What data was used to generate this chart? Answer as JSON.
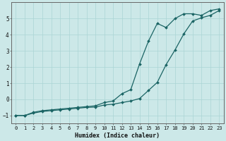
{
  "xlabel": "Humidex (Indice chaleur)",
  "bg_color": "#cce8e8",
  "line_color": "#1a6464",
  "grid_color": "#aad4d4",
  "xlim": [
    -0.5,
    23.5
  ],
  "ylim": [
    -1.5,
    6.0
  ],
  "xticks": [
    0,
    1,
    2,
    3,
    4,
    5,
    6,
    7,
    8,
    9,
    10,
    11,
    12,
    13,
    14,
    15,
    16,
    17,
    18,
    19,
    20,
    21,
    22,
    23
  ],
  "yticks": [
    -1,
    0,
    1,
    2,
    3,
    4,
    5
  ],
  "line1_x": [
    0,
    1,
    2,
    3,
    4,
    5,
    6,
    7,
    8,
    9,
    10,
    11,
    12,
    13,
    14,
    15,
    16,
    17,
    18,
    19,
    20,
    21,
    22,
    23
  ],
  "line1_y": [
    -1.0,
    -1.0,
    -0.85,
    -0.75,
    -0.7,
    -0.65,
    -0.6,
    -0.55,
    -0.5,
    -0.48,
    -0.35,
    -0.3,
    -0.2,
    -0.1,
    0.05,
    0.55,
    1.05,
    2.15,
    3.05,
    4.05,
    4.85,
    5.05,
    5.2,
    5.5
  ],
  "line2_x": [
    0,
    1,
    2,
    3,
    4,
    5,
    6,
    7,
    8,
    9,
    10,
    11,
    12,
    13,
    14,
    15,
    16,
    17,
    18,
    19,
    20,
    21,
    22,
    23
  ],
  "line2_y": [
    -1.0,
    -1.0,
    -0.8,
    -0.7,
    -0.65,
    -0.6,
    -0.55,
    -0.5,
    -0.45,
    -0.4,
    -0.2,
    -0.1,
    0.35,
    0.6,
    2.2,
    3.6,
    4.7,
    4.45,
    5.0,
    5.3,
    5.3,
    5.2,
    5.5,
    5.6
  ]
}
